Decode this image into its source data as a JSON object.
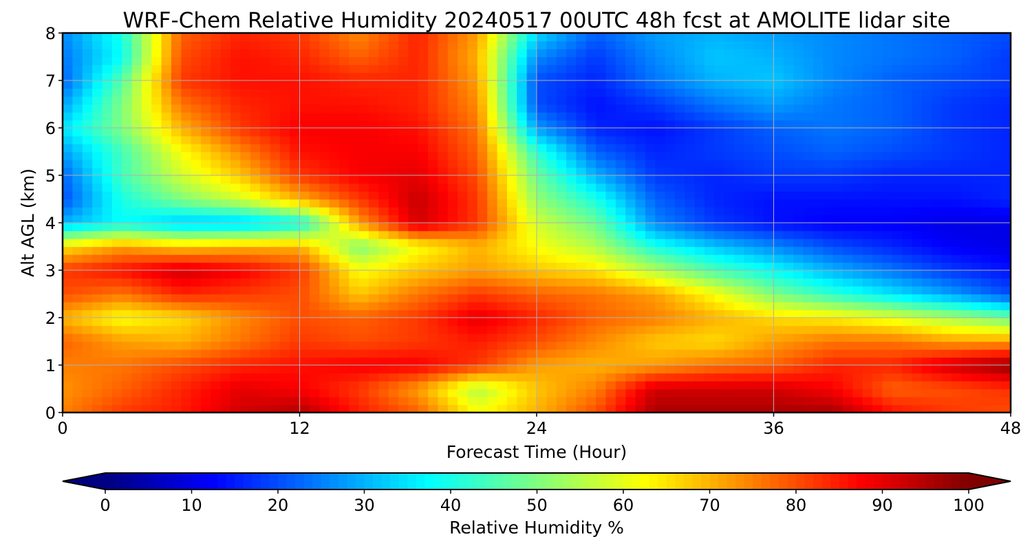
{
  "chart_data": {
    "type": "heatmap",
    "title": "WRF-Chem Relative Humidity 20240517 00UTC 48h fcst at AMOLITE lidar site",
    "xlabel": "Forecast Time (Hour)",
    "ylabel": "Alt AGL (km)",
    "xlim": [
      0,
      48
    ],
    "ylim": [
      0,
      8
    ],
    "x_ticks": [
      0,
      12,
      24,
      36,
      48
    ],
    "y_ticks": [
      0,
      1,
      2,
      3,
      4,
      5,
      6,
      7,
      8
    ],
    "grid": true,
    "colormap": "jet",
    "colorbar": {
      "label": "Relative Humidity %",
      "orientation": "horizontal",
      "placement": "bottom",
      "range": [
        0,
        100
      ],
      "extend": "both",
      "ticks": [
        0,
        10,
        20,
        30,
        40,
        50,
        60,
        70,
        80,
        90,
        100
      ]
    },
    "x": [
      0,
      3,
      6,
      9,
      12,
      15,
      18,
      21,
      24,
      27,
      30,
      33,
      36,
      39,
      42,
      45,
      48
    ],
    "y": [
      0,
      0.5,
      1,
      1.5,
      2,
      2.5,
      3,
      3.5,
      4,
      4.5,
      5,
      5.5,
      6,
      6.5,
      7,
      7.5,
      8
    ],
    "z": [
      [
        75,
        82,
        85,
        92,
        95,
        85,
        78,
        62,
        70,
        80,
        96,
        96,
        96,
        96,
        86,
        82,
        80
      ],
      [
        73,
        78,
        84,
        90,
        88,
        82,
        72,
        55,
        68,
        75,
        92,
        92,
        92,
        88,
        78,
        80,
        83
      ],
      [
        75,
        76,
        80,
        84,
        86,
        88,
        88,
        82,
        72,
        70,
        72,
        76,
        78,
        84,
        84,
        92,
        98
      ],
      [
        78,
        72,
        70,
        76,
        82,
        80,
        82,
        85,
        80,
        74,
        68,
        66,
        72,
        76,
        76,
        72,
        72
      ],
      [
        70,
        62,
        66,
        74,
        80,
        78,
        82,
        90,
        84,
        78,
        75,
        70,
        66,
        64,
        60,
        54,
        48
      ],
      [
        80,
        76,
        84,
        82,
        80,
        68,
        76,
        82,
        78,
        76,
        72,
        62,
        50,
        42,
        35,
        28,
        20
      ],
      [
        82,
        86,
        92,
        88,
        82,
        62,
        68,
        72,
        68,
        65,
        55,
        45,
        38,
        30,
        24,
        18,
        14
      ],
      [
        65,
        72,
        68,
        70,
        70,
        50,
        62,
        70,
        62,
        55,
        40,
        32,
        26,
        20,
        16,
        12,
        10
      ],
      [
        30,
        38,
        32,
        32,
        38,
        72,
        92,
        82,
        58,
        48,
        26,
        18,
        14,
        12,
        12,
        10,
        10
      ],
      [
        20,
        40,
        50,
        58,
        70,
        82,
        93,
        82,
        52,
        40,
        22,
        16,
        14,
        14,
        14,
        14,
        16
      ],
      [
        22,
        44,
        58,
        68,
        82,
        88,
        90,
        80,
        48,
        30,
        18,
        16,
        18,
        18,
        16,
        16,
        16
      ],
      [
        28,
        44,
        62,
        74,
        86,
        88,
        88,
        78,
        42,
        22,
        16,
        18,
        20,
        22,
        20,
        18,
        16
      ],
      [
        35,
        50,
        70,
        82,
        88,
        88,
        86,
        76,
        28,
        16,
        14,
        18,
        22,
        24,
        22,
        18,
        16
      ],
      [
        28,
        50,
        76,
        84,
        86,
        86,
        84,
        74,
        20,
        14,
        18,
        24,
        28,
        24,
        22,
        18,
        16
      ],
      [
        22,
        46,
        82,
        86,
        86,
        84,
        84,
        72,
        20,
        16,
        24,
        30,
        32,
        26,
        22,
        20,
        18
      ],
      [
        24,
        38,
        80,
        86,
        84,
        78,
        84,
        70,
        26,
        18,
        26,
        32,
        30,
        26,
        24,
        22,
        18
      ],
      [
        26,
        40,
        78,
        84,
        82,
        74,
        84,
        72,
        34,
        22,
        28,
        30,
        28,
        26,
        24,
        22,
        20
      ]
    ]
  }
}
